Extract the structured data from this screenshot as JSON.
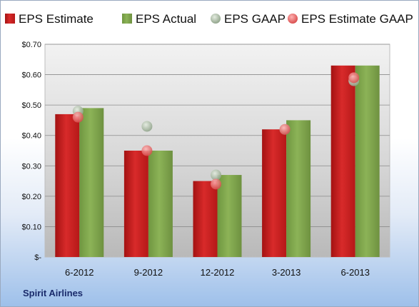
{
  "chart_data": {
    "type": "bar",
    "categories": [
      "6-2012",
      "9-2012",
      "12-2012",
      "3-2013",
      "6-2013"
    ],
    "series": [
      {
        "name": "EPS Estimate",
        "kind": "bar",
        "color": "#cc1f1f",
        "values": [
          0.47,
          0.35,
          0.25,
          0.42,
          0.63
        ]
      },
      {
        "name": "EPS Actual",
        "kind": "bar",
        "color": "#7fa34a",
        "values": [
          0.49,
          0.35,
          0.27,
          0.45,
          0.63
        ]
      },
      {
        "name": "EPS GAAP",
        "kind": "marker",
        "color": "#a9bba3",
        "values": [
          0.48,
          0.43,
          0.27,
          0.42,
          0.58
        ]
      },
      {
        "name": "EPS Estimate GAAP",
        "kind": "marker",
        "color": "#e06a6a",
        "values": [
          0.46,
          0.35,
          0.24,
          0.42,
          0.59
        ]
      }
    ],
    "ylim": [
      0,
      0.7
    ],
    "yticks": [
      0,
      0.1,
      0.2,
      0.3,
      0.4,
      0.5,
      0.6,
      0.7
    ],
    "ytick_labels": [
      "$-",
      "$0.10",
      "$0.20",
      "$0.30",
      "$0.40",
      "$0.50",
      "$0.60",
      "$0.70"
    ],
    "grid": true,
    "legend_position": "top"
  },
  "footer": {
    "company": "Spirit Airlines"
  }
}
